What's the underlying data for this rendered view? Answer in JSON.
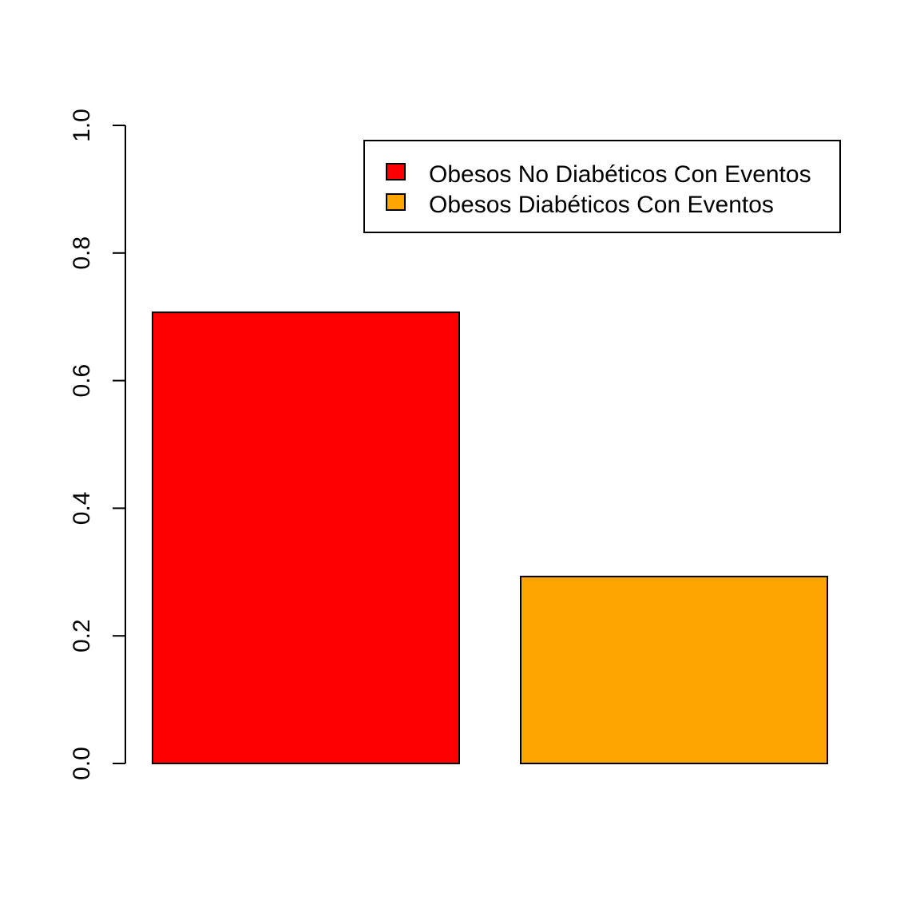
{
  "chart_data": {
    "type": "bar",
    "title": "",
    "xlabel": "",
    "ylabel": "",
    "ylim": [
      0,
      1
    ],
    "yticks": [
      "0.0",
      "0.2",
      "0.4",
      "0.6",
      "0.8",
      "1.0"
    ],
    "categories": [
      "Obesos No Diabéticos Con Eventos",
      "Obesos Diabéticos Con Eventos"
    ],
    "values": [
      0.707,
      0.293
    ],
    "colors": [
      "#ff0000",
      "#ffa500"
    ],
    "grid": false,
    "legend": {
      "position": "top-right",
      "entries": [
        "Obesos No Diabéticos Con Eventos",
        "Obesos Diabéticos Con Eventos"
      ]
    }
  }
}
